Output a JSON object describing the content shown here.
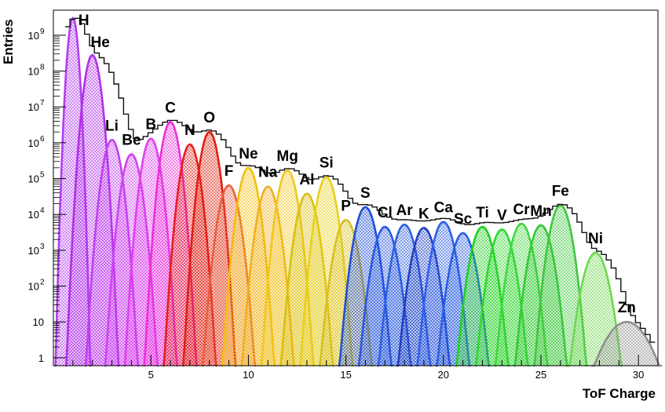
{
  "chart_data": {
    "type": "area",
    "title": "",
    "xlabel": "ToF Charge",
    "ylabel": "Entries",
    "xlim": [
      0,
      31
    ],
    "ylim": [
      0.6,
      5000000000
    ],
    "yscale": "log",
    "grid": false,
    "x_ticks": [
      5,
      10,
      15,
      20,
      25,
      30
    ],
    "y_ticks": [
      {
        "value": 1,
        "label": "1",
        "exp": ""
      },
      {
        "value": 10,
        "label": "10",
        "exp": ""
      },
      {
        "value": 100,
        "label": "10",
        "exp": "2"
      },
      {
        "value": 1000,
        "label": "10",
        "exp": "3"
      },
      {
        "value": 10000,
        "label": "10",
        "exp": "4"
      },
      {
        "value": 100000,
        "label": "10",
        "exp": "5"
      },
      {
        "value": 1000000,
        "label": "10",
        "exp": "6"
      },
      {
        "value": 10000000,
        "label": "10",
        "exp": "7"
      },
      {
        "value": 100000000,
        "label": "10",
        "exp": "8"
      },
      {
        "value": 1000000000,
        "label": "10",
        "exp": "9"
      }
    ],
    "series": [
      {
        "name": "H",
        "x": 1,
        "peak": 3000000000,
        "color": "#b23cf0"
      },
      {
        "name": "He",
        "x": 2,
        "peak": 280000000,
        "color": "#b030e8"
      },
      {
        "name": "Li",
        "x": 3,
        "peak": 1200000,
        "color": "#c040f0"
      },
      {
        "name": "Be",
        "x": 4,
        "peak": 480000,
        "color": "#d044f0"
      },
      {
        "name": "B",
        "x": 5,
        "peak": 1300000,
        "color": "#e040f0"
      },
      {
        "name": "C",
        "x": 6,
        "peak": 3800000,
        "color": "#ee30d8"
      },
      {
        "name": "N",
        "x": 7,
        "peak": 900000,
        "color": "#e62020"
      },
      {
        "name": "O",
        "x": 8,
        "peak": 2000000,
        "color": "#e02010"
      },
      {
        "name": "F",
        "x": 9,
        "peak": 65000,
        "color": "#e86040"
      },
      {
        "name": "Ne",
        "x": 10,
        "peak": 200000,
        "color": "#f2c010"
      },
      {
        "name": "Na",
        "x": 11,
        "peak": 60000,
        "color": "#f0b020"
      },
      {
        "name": "Mg",
        "x": 12,
        "peak": 170000,
        "color": "#f0c820"
      },
      {
        "name": "Al",
        "x": 13,
        "peak": 38000,
        "color": "#d8c010"
      },
      {
        "name": "Si",
        "x": 14,
        "peak": 110000,
        "color": "#e8d020"
      },
      {
        "name": "P",
        "x": 15,
        "peak": 7000,
        "color": "#d8c020"
      },
      {
        "name": "S",
        "x": 16,
        "peak": 16000,
        "color": "#2050d8"
      },
      {
        "name": "Cl",
        "x": 17,
        "peak": 4500,
        "color": "#2a58e0"
      },
      {
        "name": "Ar",
        "x": 18,
        "peak": 5200,
        "color": "#3060e0"
      },
      {
        "name": "K",
        "x": 19,
        "peak": 4200,
        "color": "#2040c0"
      },
      {
        "name": "Ca",
        "x": 20,
        "peak": 6200,
        "color": "#3060e8"
      },
      {
        "name": "Sc",
        "x": 21,
        "peak": 3000,
        "color": "#2a60e0"
      },
      {
        "name": "Ti",
        "x": 22,
        "peak": 4500,
        "color": "#20d020"
      },
      {
        "name": "V",
        "x": 23,
        "peak": 3800,
        "color": "#30d830"
      },
      {
        "name": "Cr",
        "x": 24,
        "peak": 5500,
        "color": "#40d840"
      },
      {
        "name": "Mn",
        "x": 25,
        "peak": 5000,
        "color": "#38c838"
      },
      {
        "name": "Fe",
        "x": 26,
        "peak": 18000,
        "color": "#40c840"
      },
      {
        "name": "Ni",
        "x": 27.8,
        "peak": 850,
        "color": "#70d850"
      },
      {
        "name": "Zn",
        "x": 29.4,
        "peak": 10,
        "color": "#909090"
      }
    ]
  }
}
